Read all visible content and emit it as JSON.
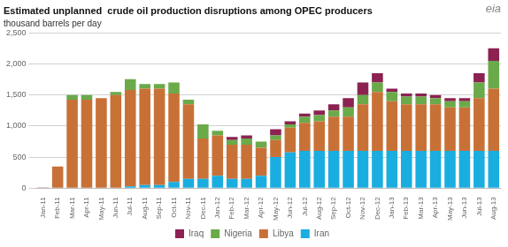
{
  "chart_data": {
    "type": "bar",
    "stacked": true,
    "title": "Estimated unplanned  crude oil production disruptions among OPEC producers",
    "subtitle": "thousand barrels per day",
    "annotations": [
      {
        "text": "eia"
      }
    ],
    "categories": [
      "Jan-11",
      "Feb-11",
      "Mar-11",
      "Apr-11",
      "May-11",
      "Jun-11",
      "Jul-11",
      "Aug-11",
      "Sep-11",
      "Oct-11",
      "Nov-11",
      "Dec-11",
      "Jan-12",
      "Feb-12",
      "Mar-12",
      "Apr-12",
      "May-12",
      "Jun-12",
      "Jul-12",
      "Aug-12",
      "Sep-12",
      "Oct-12",
      "Nov-12",
      "Dec-12",
      "Jan-13",
      "Feb-13",
      "Mar-13",
      "Apr-13",
      "May-13",
      "Jun-13",
      "Jul-13",
      "Aug-13"
    ],
    "series": [
      {
        "name": "Iran",
        "color": "#1aade0",
        "values": [
          0,
          0,
          0,
          0,
          0,
          0,
          30,
          50,
          50,
          100,
          150,
          150,
          200,
          150,
          150,
          200,
          500,
          575,
          600,
          600,
          600,
          600,
          600,
          600,
          600,
          600,
          600,
          600,
          600,
          600,
          600,
          600
        ]
      },
      {
        "name": "Libya",
        "color": "#c87137",
        "values": [
          0,
          350,
          1425,
          1425,
          1450,
          1500,
          1550,
          1550,
          1550,
          1425,
          1200,
          650,
          650,
          550,
          550,
          450,
          275,
          400,
          450,
          475,
          550,
          550,
          750,
          950,
          800,
          750,
          750,
          750,
          700,
          700,
          850,
          1000
        ]
      },
      {
        "name": "Nigeria",
        "color": "#6aaa4a",
        "values": [
          0,
          0,
          75,
          75,
          0,
          50,
          175,
          75,
          75,
          175,
          75,
          225,
          75,
          75,
          100,
          100,
          75,
          50,
          100,
          100,
          100,
          150,
          150,
          150,
          150,
          125,
          125,
          100,
          100,
          100,
          250,
          450
        ]
      },
      {
        "name": "Iraq",
        "color": "#8B2252",
        "values": [
          10,
          0,
          0,
          0,
          0,
          0,
          0,
          0,
          0,
          0,
          0,
          0,
          0,
          50,
          50,
          0,
          100,
          50,
          50,
          75,
          100,
          150,
          200,
          150,
          50,
          50,
          50,
          50,
          50,
          50,
          150,
          200
        ]
      }
    ],
    "ylim": [
      0,
      2500
    ],
    "yticks": [
      0,
      500,
      {
        "value": 1000,
        "label": "1,000"
      },
      {
        "value": 1500,
        "label": "1,500"
      },
      {
        "value": 2000,
        "label": "2,000"
      },
      {
        "value": 2500,
        "label": "2,500"
      }
    ],
    "grid": true,
    "legend": "bottom"
  }
}
